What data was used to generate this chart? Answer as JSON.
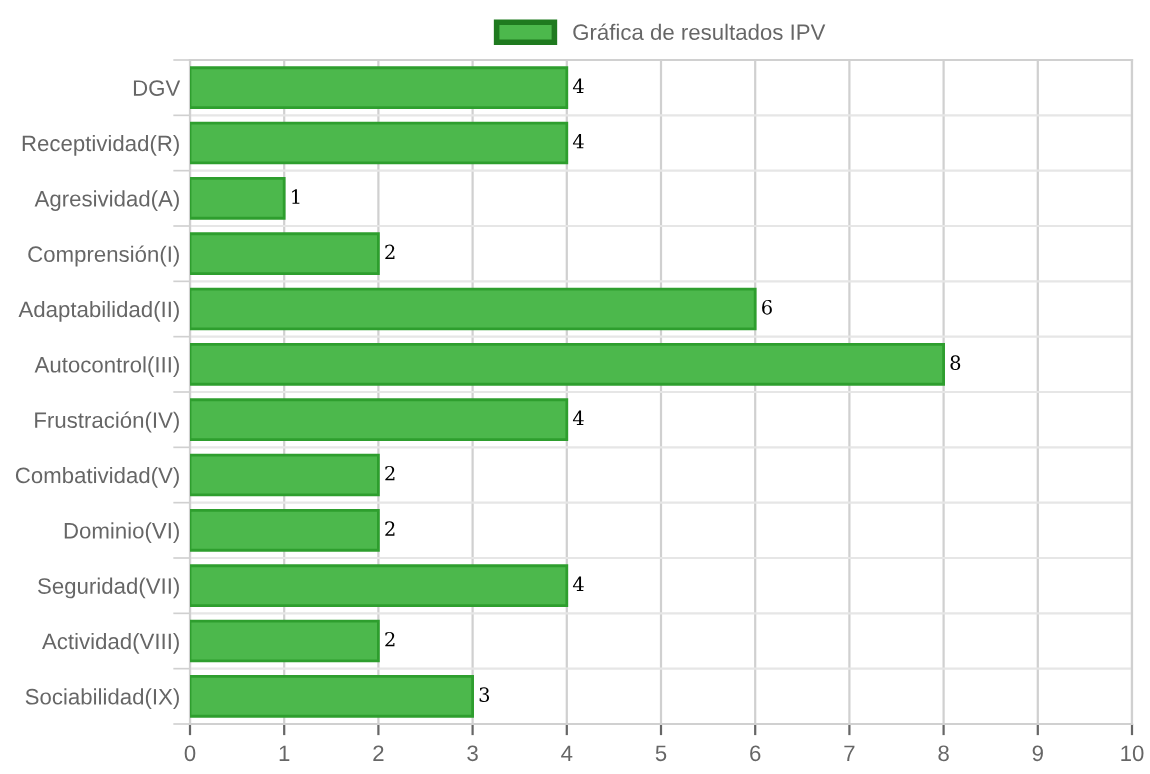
{
  "chart_data": {
    "type": "bar",
    "orientation": "horizontal",
    "categories": [
      "DGV",
      "Receptividad(R)",
      "Agresividad(A)",
      "Comprensión(I)",
      "Adaptabilidad(II)",
      "Autocontrol(III)",
      "Frustración(IV)",
      "Combatividad(V)",
      "Dominio(VI)",
      "Seguridad(VII)",
      "Actividad(VIII)",
      "Sociabilidad(IX)"
    ],
    "series": [
      {
        "name": "Gráfica de resultados IPV",
        "color": "#4cb84c",
        "values": [
          4,
          4,
          1,
          2,
          6,
          8,
          4,
          2,
          2,
          4,
          2,
          3
        ]
      }
    ],
    "xlim": [
      0,
      10
    ],
    "xticks": [
      0,
      1,
      2,
      3,
      4,
      5,
      6,
      7,
      8,
      9,
      10
    ],
    "grid": true,
    "legend": "top",
    "data_labels": true
  }
}
